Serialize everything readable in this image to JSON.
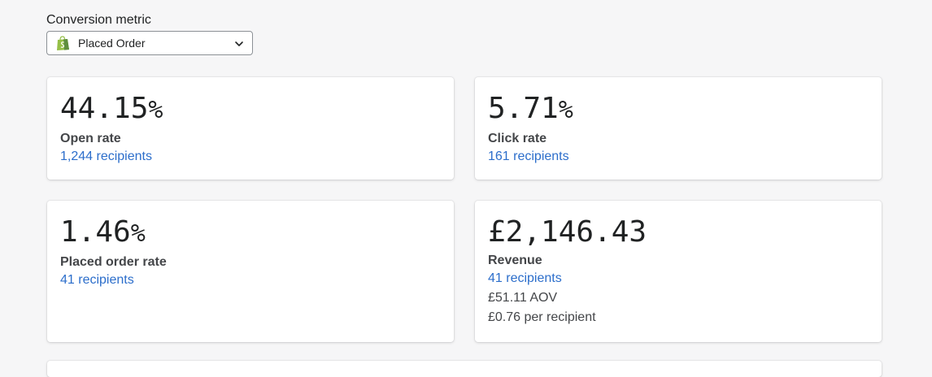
{
  "conversion_metric": {
    "label": "Conversion metric",
    "selected": "Placed Order",
    "icon": "shopify-bag-icon",
    "icon_color": "#95bf47"
  },
  "cards": {
    "open_rate": {
      "value": "44.15",
      "unit": "%",
      "label": "Open rate",
      "link": "1,244 recipients"
    },
    "click_rate": {
      "value": "5.71",
      "unit": "%",
      "label": "Click rate",
      "link": "161 recipients"
    },
    "placed_order_rate": {
      "value": "1.46",
      "unit": "%",
      "label": "Placed order rate",
      "link": "41 recipients"
    },
    "revenue": {
      "value": "£2,146.43",
      "label": "Revenue",
      "link": "41 recipients",
      "aov": "£51.11 AOV",
      "per_recipient": "£0.76 per recipient"
    }
  },
  "colors": {
    "link": "#2c6ecb",
    "background": "#f6f6f7"
  }
}
